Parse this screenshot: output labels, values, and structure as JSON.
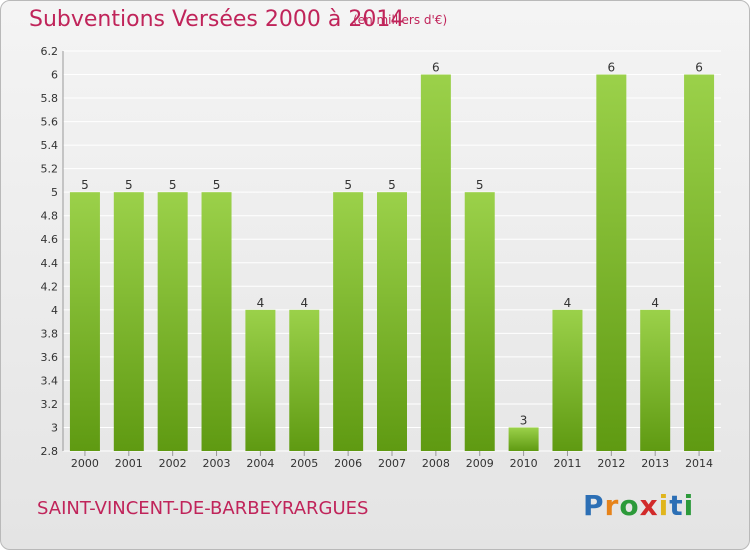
{
  "header": {
    "title": "Subventions Versées 2000 à 2014",
    "unit": "(en milliers d'€)"
  },
  "footer": {
    "place": "SAINT-VINCENT-DE-BARBEYRARGUES",
    "logo": [
      "P",
      "r",
      "o",
      "x",
      "i",
      "t",
      "i"
    ]
  },
  "colors": {
    "bar_top": "#9bd14a",
    "bar_bottom": "#5f9a12",
    "title": "#c0245a",
    "grid": "#ffffff"
  },
  "chart_data": {
    "type": "bar",
    "title": "Subventions Versées 2000 à 2014",
    "categories": [
      "2000",
      "2001",
      "2002",
      "2003",
      "2004",
      "2005",
      "2006",
      "2007",
      "2008",
      "2009",
      "2010",
      "2011",
      "2012",
      "2013",
      "2014"
    ],
    "values": [
      5,
      5,
      5,
      5,
      4,
      4,
      5,
      5,
      6,
      5,
      3,
      4,
      6,
      4,
      6
    ],
    "value_labels": [
      "5",
      "5",
      "5",
      "5",
      "4",
      "4",
      "5",
      "5",
      "6",
      "5",
      "3",
      "4",
      "6",
      "4",
      "6"
    ],
    "ylim": [
      2.8,
      6.2
    ],
    "yticks": [
      "2.8",
      "3",
      "3.2",
      "3.4",
      "3.6",
      "3.8",
      "4",
      "4.2",
      "4.4",
      "4.6",
      "4.8",
      "5",
      "5.2",
      "5.4",
      "5.6",
      "5.8",
      "6",
      "6.2"
    ],
    "ytick_values": [
      2.8,
      3,
      3.2,
      3.4,
      3.6,
      3.8,
      4,
      4.2,
      4.4,
      4.6,
      4.8,
      5,
      5.2,
      5.4,
      5.6,
      5.8,
      6,
      6.2
    ],
    "xlabel": "",
    "ylabel": "",
    "grid": true
  }
}
